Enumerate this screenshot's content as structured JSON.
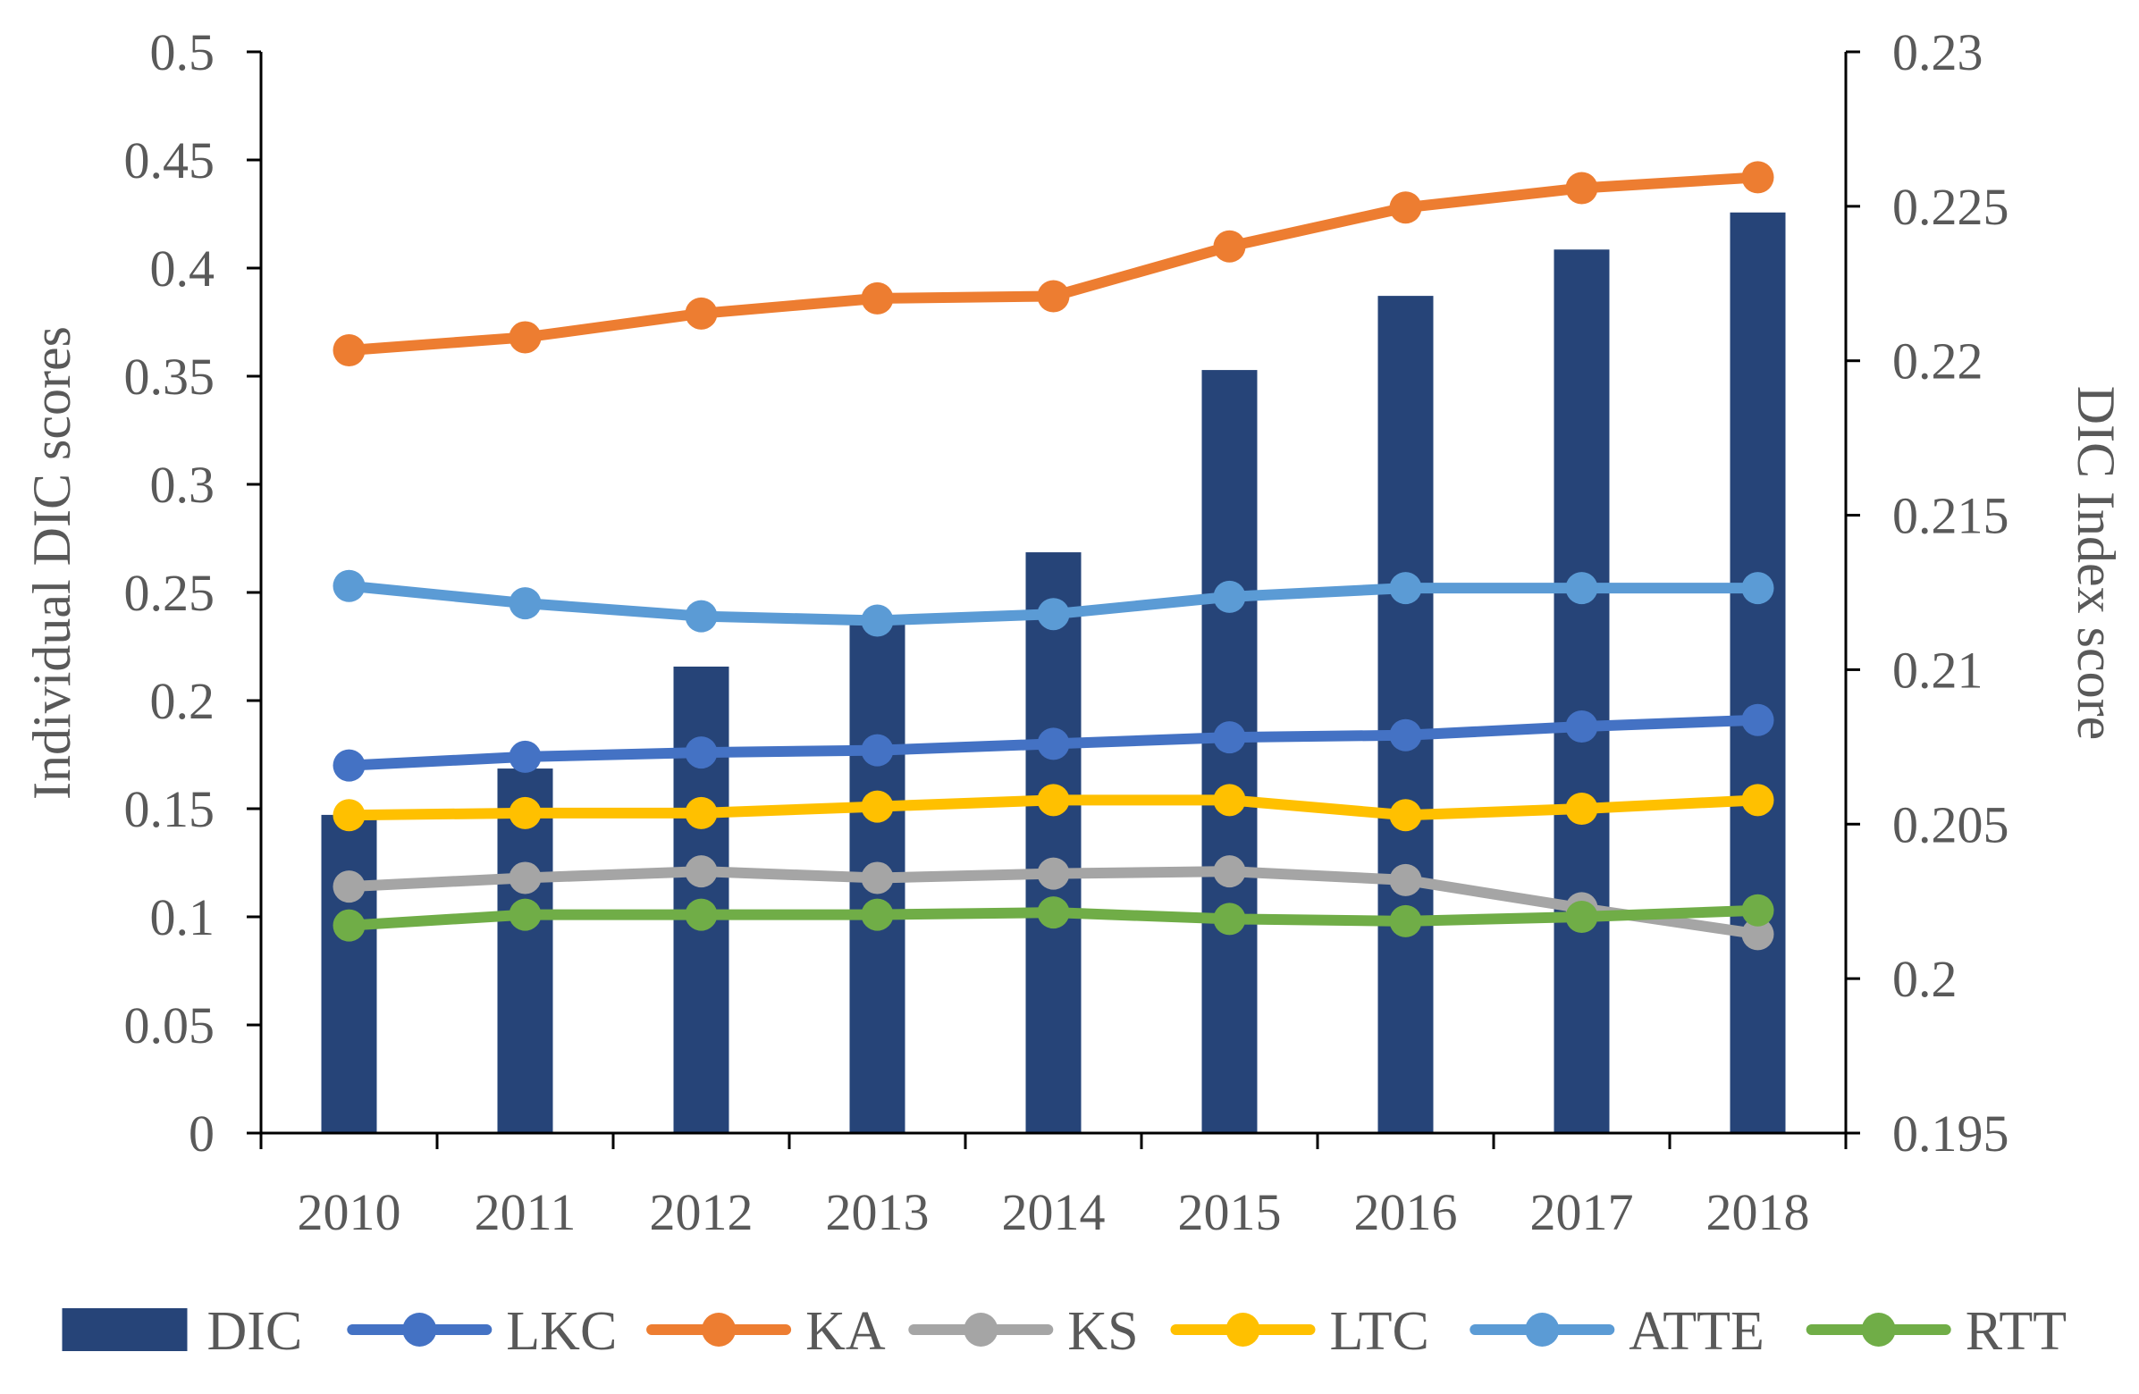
{
  "chart_data": {
    "type": "bar+line",
    "title": "",
    "categories": [
      "2010",
      "2011",
      "2012",
      "2013",
      "2014",
      "2015",
      "2016",
      "2017",
      "2018"
    ],
    "bar_series": {
      "name": "DIC",
      "axis": "right",
      "color": "#264478",
      "values": [
        0.2053,
        0.2068,
        0.2101,
        0.2117,
        0.2138,
        0.2197,
        0.2221,
        0.2236,
        0.2248
      ]
    },
    "line_series": [
      {
        "name": "LKC",
        "color": "#4472C4",
        "values": [
          0.17,
          0.174,
          0.176,
          0.177,
          0.18,
          0.183,
          0.184,
          0.188,
          0.191
        ]
      },
      {
        "name": "KA",
        "color": "#ED7D31",
        "values": [
          0.362,
          0.368,
          0.379,
          0.386,
          0.387,
          0.41,
          0.428,
          0.437,
          0.442
        ]
      },
      {
        "name": "KS",
        "color": "#A5A5A5",
        "values": [
          0.114,
          0.118,
          0.121,
          0.118,
          0.12,
          0.121,
          0.117,
          0.104,
          0.092
        ]
      },
      {
        "name": "LTC",
        "color": "#FFC000",
        "values": [
          0.147,
          0.148,
          0.148,
          0.151,
          0.154,
          0.154,
          0.147,
          0.15,
          0.154
        ]
      },
      {
        "name": "ATTE",
        "color": "#5B9BD5",
        "values": [
          0.253,
          0.245,
          0.239,
          0.237,
          0.24,
          0.248,
          0.252,
          0.252,
          0.252
        ]
      },
      {
        "name": "RTT",
        "color": "#70AD47",
        "values": [
          0.096,
          0.101,
          0.101,
          0.101,
          0.102,
          0.099,
          0.098,
          0.1,
          0.103
        ]
      }
    ],
    "left_axis": {
      "label": "Individual DIC scores",
      "range": [
        0,
        0.5
      ],
      "ticks": [
        "0",
        "0.05",
        "0.1",
        "0.15",
        "0.2",
        "0.25",
        "0.3",
        "0.35",
        "0.4",
        "0.45",
        "0.5"
      ]
    },
    "right_axis": {
      "label": "DIC Index score",
      "range": [
        0.195,
        0.23
      ],
      "ticks": [
        "0.195",
        "0.2",
        "0.205",
        "0.21",
        "0.215",
        "0.22",
        "0.225",
        "0.23"
      ]
    },
    "legend": {
      "position": "bottom",
      "entries": [
        "DIC",
        "LKC",
        "KA",
        "KS",
        "LTC",
        "ATTE",
        "RTT"
      ]
    },
    "grid": false,
    "axis_color": "#000000",
    "text_color": "#595959"
  }
}
